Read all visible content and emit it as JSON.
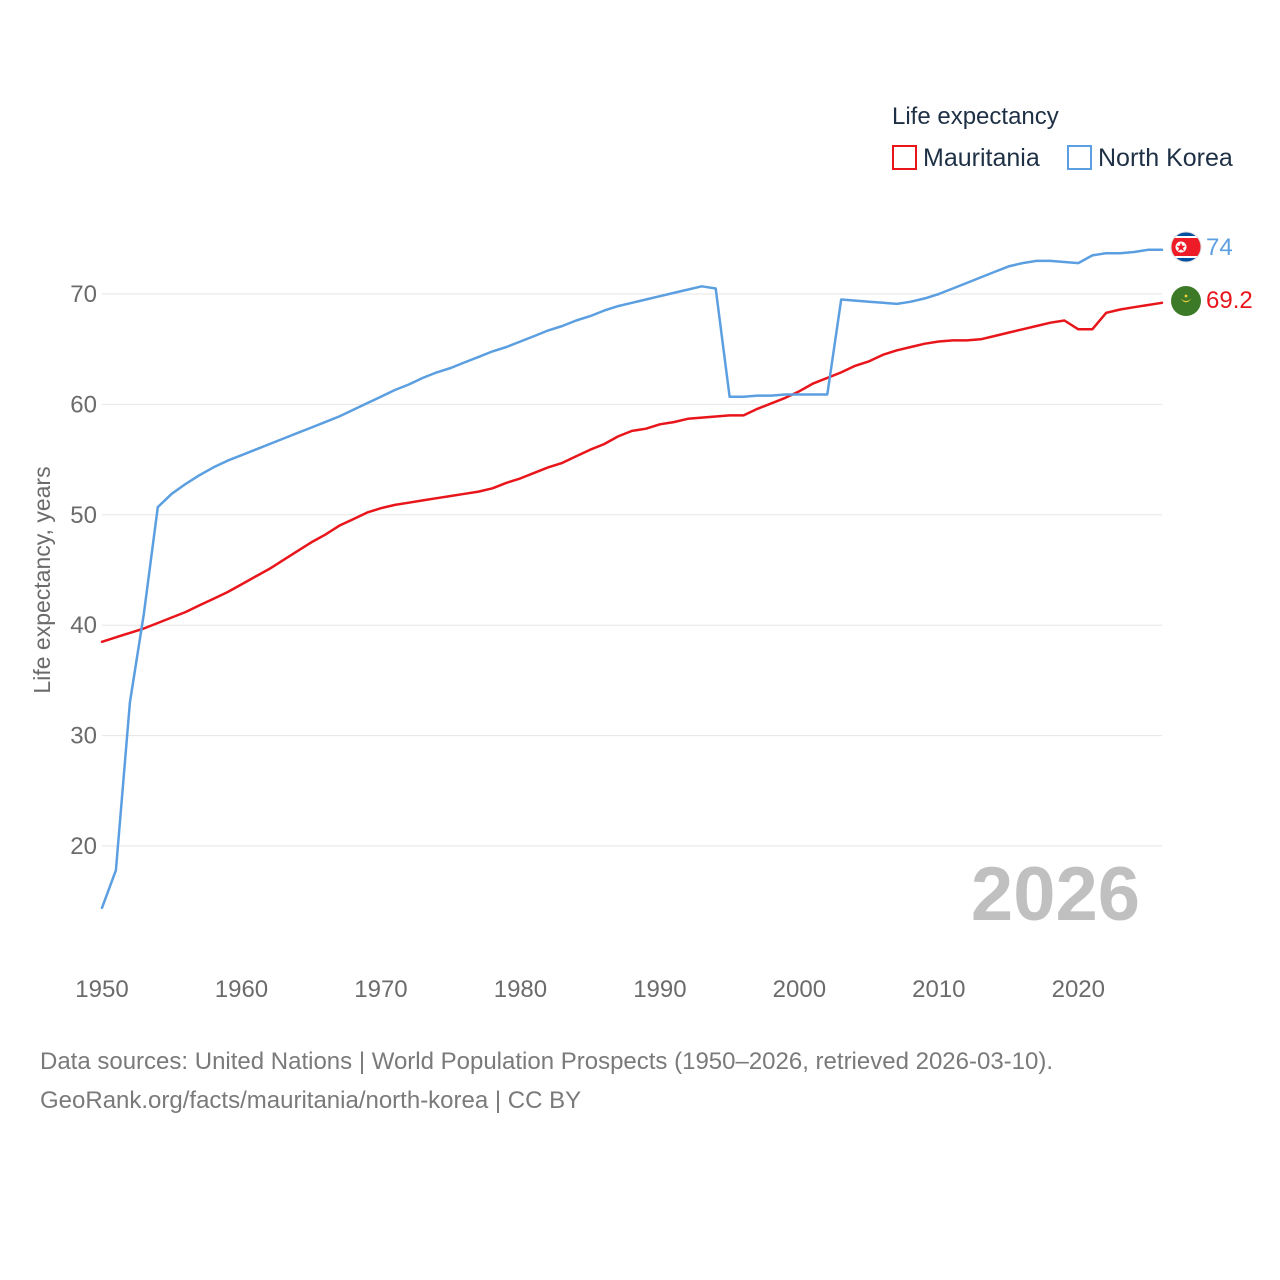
{
  "chart_data": {
    "type": "line",
    "legend_title": "Life expectancy",
    "ylabel": "Life expectancy, years",
    "xlabel": "",
    "xlim": [
      1950,
      2026
    ],
    "ylim": [
      13.5,
      75
    ],
    "y_ticks": [
      20,
      30,
      40,
      50,
      60,
      70
    ],
    "x_ticks": [
      1950,
      1960,
      1970,
      1980,
      1990,
      2000,
      2010,
      2020
    ],
    "grid": true,
    "legend_position": "top-right",
    "year_label": "2026",
    "x": [
      1950,
      1951,
      1952,
      1953,
      1954,
      1955,
      1956,
      1957,
      1958,
      1959,
      1960,
      1961,
      1962,
      1963,
      1964,
      1965,
      1966,
      1967,
      1968,
      1969,
      1970,
      1971,
      1972,
      1973,
      1974,
      1975,
      1976,
      1977,
      1978,
      1979,
      1980,
      1981,
      1982,
      1983,
      1984,
      1985,
      1986,
      1987,
      1988,
      1989,
      1990,
      1991,
      1992,
      1993,
      1994,
      1995,
      1996,
      1997,
      1998,
      1999,
      2000,
      2001,
      2002,
      2003,
      2004,
      2005,
      2006,
      2007,
      2008,
      2009,
      2010,
      2011,
      2012,
      2013,
      2014,
      2015,
      2016,
      2017,
      2018,
      2019,
      2020,
      2021,
      2022,
      2023,
      2024,
      2025,
      2026
    ],
    "series": [
      {
        "name": "Mauritania",
        "color": "#e8161b",
        "end_label": "69.2",
        "flag": "mauritania-flag",
        "values": [
          38.5,
          38.9,
          39.3,
          39.7,
          40.2,
          40.7,
          41.2,
          41.8,
          42.4,
          43.0,
          43.7,
          44.4,
          45.1,
          45.9,
          46.7,
          47.5,
          48.2,
          49.0,
          49.6,
          50.2,
          50.6,
          50.9,
          51.1,
          51.3,
          51.5,
          51.7,
          51.9,
          52.1,
          52.4,
          52.9,
          53.3,
          53.8,
          54.3,
          54.7,
          55.3,
          55.9,
          56.4,
          57.1,
          57.6,
          57.8,
          58.2,
          58.4,
          58.7,
          58.8,
          58.9,
          59.0,
          59.0,
          59.6,
          60.1,
          60.6,
          61.2,
          61.9,
          62.4,
          62.9,
          63.5,
          63.9,
          64.5,
          64.9,
          65.2,
          65.5,
          65.7,
          65.8,
          65.8,
          65.9,
          66.2,
          66.5,
          66.8,
          67.1,
          67.4,
          67.6,
          66.8,
          66.8,
          68.3,
          68.6,
          68.8,
          69.0,
          69.2
        ]
      },
      {
        "name": "North Korea",
        "color": "#5b9fe1",
        "end_label": "74",
        "flag": "north-korea-flag",
        "values": [
          14.4,
          17.8,
          33.0,
          41.0,
          50.7,
          51.9,
          52.8,
          53.6,
          54.3,
          54.9,
          55.4,
          55.9,
          56.4,
          56.9,
          57.4,
          57.9,
          58.4,
          58.9,
          59.5,
          60.1,
          60.7,
          61.3,
          61.8,
          62.4,
          62.9,
          63.3,
          63.8,
          64.3,
          64.8,
          65.2,
          65.7,
          66.2,
          66.7,
          67.1,
          67.6,
          68.0,
          68.5,
          68.9,
          69.2,
          69.5,
          69.8,
          70.1,
          70.4,
          70.7,
          70.5,
          60.7,
          60.7,
          60.8,
          60.8,
          60.9,
          60.9,
          60.9,
          60.9,
          69.5,
          69.4,
          69.3,
          69.2,
          69.1,
          69.3,
          69.6,
          70.0,
          70.5,
          71.0,
          71.5,
          72.0,
          72.5,
          72.8,
          73.0,
          73.0,
          72.9,
          72.8,
          73.5,
          73.7,
          73.7,
          73.8,
          74.0,
          74.0
        ]
      }
    ]
  },
  "footer": {
    "source_line": "Data sources: United Nations | World Population Prospects (1950–2026, retrieved 2026-03-10).",
    "site_line": "GeoRank.org/facts/mauritania/north-korea | CC BY"
  }
}
